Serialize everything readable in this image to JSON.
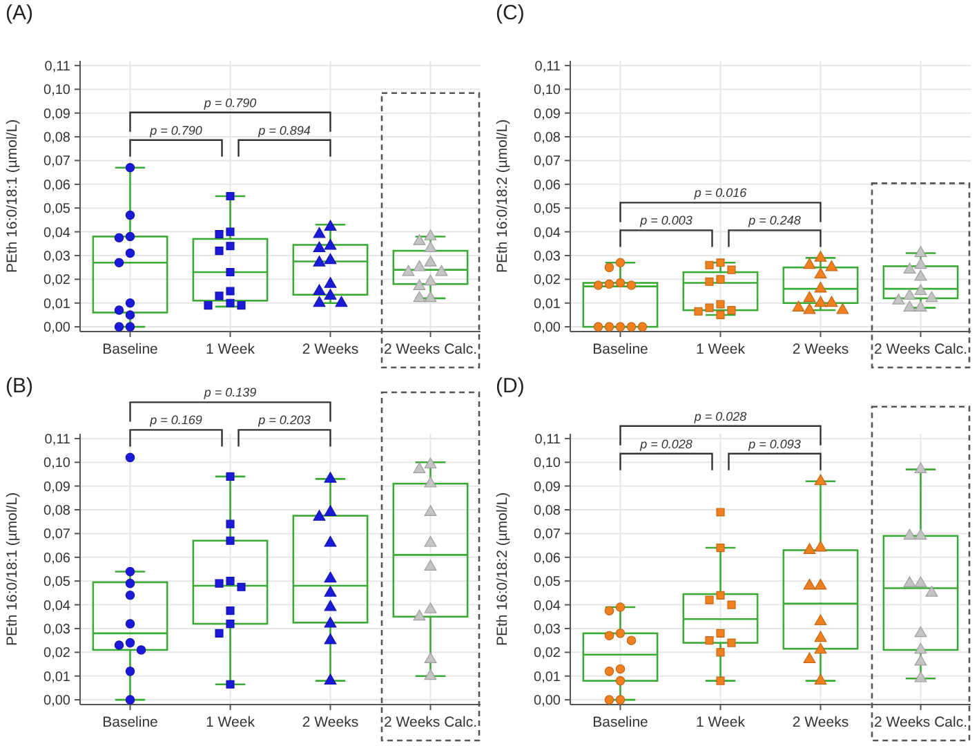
{
  "chart_data": [
    {
      "type": "box",
      "title": "(A)",
      "ylabel": "PEth 16:0/18:1 (µmol/L)",
      "categories": [
        "Baseline",
        "1 Week",
        "2 Weeks",
        "2 Weeks Calc."
      ],
      "ylim": [
        -0.002,
        0.112
      ],
      "yticks": [
        {
          "value": 0,
          "label": "0,00"
        },
        {
          "value": 0.01,
          "label": "0,01"
        },
        {
          "value": 0.02,
          "label": "0,02"
        },
        {
          "value": 0.03,
          "label": "0,03"
        },
        {
          "value": 0.04,
          "label": "0,04"
        },
        {
          "value": 0.05,
          "label": "0,05"
        },
        {
          "value": 0.06,
          "label": "0,06"
        },
        {
          "value": 0.07,
          "label": "0,07"
        },
        {
          "value": 0.08,
          "label": "0,08"
        },
        {
          "value": 0.09,
          "label": "0,09"
        },
        {
          "value": 0.1,
          "label": "0,10"
        },
        {
          "value": 0.11,
          "label": "0,11"
        }
      ],
      "grid": true,
      "annotations": [
        "p = 0.790",
        "p = 0.894",
        "p = 0.790"
      ],
      "series": [
        {
          "color": "#3aaa35",
          "boxes": [
            {
              "low": 0,
              "q1": 0.006,
              "median": 0.027,
              "q3": 0.038,
              "high": 0.067
            },
            {
              "low": 0.0085,
              "q1": 0.011,
              "median": 0.023,
              "q3": 0.037,
              "high": 0.055
            },
            {
              "low": 0.01,
              "q1": 0.0135,
              "median": 0.0275,
              "q3": 0.0345,
              "high": 0.043
            },
            {
              "low": 0.012,
              "q1": 0.018,
              "median": 0.024,
              "q3": 0.032,
              "high": 0.038
            }
          ]
        },
        {
          "type": "scatter",
          "marker": "circle",
          "color": "#1a1ad8",
          "x": [
            "Baseline",
            "Baseline",
            "Baseline",
            "Baseline",
            "Baseline",
            "Baseline",
            "Baseline",
            "Baseline",
            "Baseline",
            "Baseline",
            "Baseline"
          ],
          "values": [
            0.067,
            0.047,
            0.038,
            0.0375,
            0.031,
            0.027,
            0.01,
            0.007,
            0.005,
            0,
            0
          ]
        },
        {
          "type": "scatter",
          "marker": "square",
          "color": "#1a1ad8",
          "x": [
            "1 Week",
            "1 Week",
            "1 Week",
            "1 Week",
            "1 Week",
            "1 Week",
            "1 Week",
            "1 Week",
            "1 Week",
            "1 Week",
            "1 Week"
          ],
          "values": [
            0.055,
            0.04,
            0.039,
            0.034,
            0.032,
            0.023,
            0.015,
            0.013,
            0.01,
            0.009,
            0.009
          ]
        },
        {
          "type": "scatter",
          "marker": "triangle",
          "color": "#1a1ad8",
          "x": [
            "2 Weeks",
            "2 Weeks",
            "2 Weeks",
            "2 Weeks",
            "2 Weeks",
            "2 Weeks",
            "2 Weeks",
            "2 Weeks",
            "2 Weeks",
            "2 Weeks",
            "2 Weeks"
          ],
          "values": [
            0.042,
            0.039,
            0.034,
            0.033,
            0.028,
            0.027,
            0.018,
            0.015,
            0.013,
            0.01,
            0.01
          ]
        },
        {
          "type": "scatter",
          "marker": "triangle",
          "color": "#c4c4c4",
          "x": [
            "2 Weeks Calc.",
            "2 Weeks Calc.",
            "2 Weeks Calc.",
            "2 Weeks Calc.",
            "2 Weeks Calc.",
            "2 Weeks Calc.",
            "2 Weeks Calc.",
            "2 Weeks Calc.",
            "2 Weeks Calc.",
            "2 Weeks Calc.",
            "2 Weeks Calc."
          ],
          "values": [
            0.038,
            0.036,
            0.033,
            0.027,
            0.025,
            0.023,
            0.023,
            0.019,
            0.017,
            0.012,
            0.012
          ]
        }
      ]
    },
    {
      "type": "box",
      "title": "(C)",
      "ylabel": "PEth 16:0/18:2 (µmol/L)",
      "categories": [
        "Baseline",
        "1 Week",
        "2 Weeks",
        "2 Weeks Calc."
      ],
      "ylim": [
        -0.002,
        0.112
      ],
      "yticks": [
        {
          "value": 0,
          "label": "0,00"
        },
        {
          "value": 0.01,
          "label": "0,01"
        },
        {
          "value": 0.02,
          "label": "0,02"
        },
        {
          "value": 0.03,
          "label": "0,03"
        },
        {
          "value": 0.04,
          "label": "0,04"
        },
        {
          "value": 0.05,
          "label": "0,05"
        },
        {
          "value": 0.06,
          "label": "0,06"
        },
        {
          "value": 0.07,
          "label": "0,07"
        },
        {
          "value": 0.08,
          "label": "0,08"
        },
        {
          "value": 0.09,
          "label": "0,09"
        },
        {
          "value": 0.1,
          "label": "0,10"
        },
        {
          "value": 0.11,
          "label": "0,11"
        }
      ],
      "grid": true,
      "annotations": [
        "p = 0.003",
        "p = 0.248",
        "p = 0.016"
      ],
      "series": [
        {
          "color": "#3aaa35",
          "boxes": [
            {
              "low": 0,
              "q1": 0,
              "median": 0.017,
              "q3": 0.0185,
              "high": 0.027
            },
            {
              "low": 0.005,
              "q1": 0.007,
              "median": 0.0185,
              "q3": 0.023,
              "high": 0.027
            },
            {
              "low": 0.007,
              "q1": 0.01,
              "median": 0.016,
              "q3": 0.025,
              "high": 0.029
            },
            {
              "low": 0.008,
              "q1": 0.012,
              "median": 0.016,
              "q3": 0.0255,
              "high": 0.031
            }
          ]
        },
        {
          "type": "scatter",
          "marker": "circle",
          "color": "#f07f1e",
          "x": [
            "Baseline",
            "Baseline",
            "Baseline",
            "Baseline",
            "Baseline",
            "Baseline",
            "Baseline",
            "Baseline",
            "Baseline",
            "Baseline",
            "Baseline"
          ],
          "values": [
            0.027,
            0.025,
            0.0185,
            0.018,
            0.0175,
            0.0175,
            0,
            0,
            0,
            0,
            0
          ]
        },
        {
          "type": "scatter",
          "marker": "square",
          "color": "#f07f1e",
          "x": [
            "1 Week",
            "1 Week",
            "1 Week",
            "1 Week",
            "1 Week",
            "1 Week",
            "1 Week",
            "1 Week",
            "1 Week",
            "1 Week"
          ],
          "values": [
            0.027,
            0.026,
            0.024,
            0.02,
            0.019,
            0.0095,
            0.008,
            0.007,
            0.0065,
            0.005
          ]
        },
        {
          "type": "scatter",
          "marker": "triangle",
          "color": "#f07f1e",
          "x": [
            "2 Weeks",
            "2 Weeks",
            "2 Weeks",
            "2 Weeks",
            "2 Weeks",
            "2 Weeks",
            "2 Weeks",
            "2 Weeks",
            "2 Weeks",
            "2 Weeks",
            "2 Weeks"
          ],
          "values": [
            0.029,
            0.026,
            0.025,
            0.022,
            0.016,
            0.012,
            0.01,
            0.01,
            0.008,
            0.007,
            0.007
          ]
        },
        {
          "type": "scatter",
          "marker": "triangle",
          "color": "#c4c4c4",
          "x": [
            "2 Weeks Calc.",
            "2 Weeks Calc.",
            "2 Weeks Calc.",
            "2 Weeks Calc.",
            "2 Weeks Calc.",
            "2 Weeks Calc.",
            "2 Weeks Calc.",
            "2 Weeks Calc.",
            "2 Weeks Calc.",
            "2 Weeks Calc."
          ],
          "values": [
            0.031,
            0.026,
            0.024,
            0.021,
            0.015,
            0.013,
            0.012,
            0.011,
            0.008,
            0.008
          ]
        }
      ]
    },
    {
      "type": "box",
      "title": "(B)",
      "ylabel": "PEth 16:0/18:1 (µmol/L)",
      "categories": [
        "Baseline",
        "1 Week",
        "2 Weeks",
        "2 Weeks Calc."
      ],
      "ylim": [
        -0.002,
        0.112
      ],
      "yticks": [
        {
          "value": 0,
          "label": "0,00"
        },
        {
          "value": 0.01,
          "label": "0,01"
        },
        {
          "value": 0.02,
          "label": "0,02"
        },
        {
          "value": 0.03,
          "label": "0,03"
        },
        {
          "value": 0.04,
          "label": "0,04"
        },
        {
          "value": 0.05,
          "label": "0,05"
        },
        {
          "value": 0.06,
          "label": "0,06"
        },
        {
          "value": 0.07,
          "label": "0,07"
        },
        {
          "value": 0.08,
          "label": "0,08"
        },
        {
          "value": 0.09,
          "label": "0,09"
        },
        {
          "value": 0.1,
          "label": "0,10"
        },
        {
          "value": 0.11,
          "label": "0,11"
        }
      ],
      "grid": true,
      "annotations": [
        "p = 0.169",
        "p = 0.203",
        "p = 0.139"
      ],
      "series": [
        {
          "color": "#3aaa35",
          "boxes": [
            {
              "low": 0,
              "q1": 0.021,
              "median": 0.028,
              "q3": 0.0495,
              "high": 0.054
            },
            {
              "low": 0.0065,
              "q1": 0.032,
              "median": 0.048,
              "q3": 0.067,
              "high": 0.094
            },
            {
              "low": 0.008,
              "q1": 0.0325,
              "median": 0.048,
              "q3": 0.0775,
              "high": 0.093
            },
            {
              "low": 0.01,
              "q1": 0.035,
              "median": 0.061,
              "q3": 0.091,
              "high": 0.1
            }
          ]
        },
        {
          "type": "scatter",
          "marker": "circle",
          "color": "#1a1ad8",
          "x": [
            "Baseline",
            "Baseline",
            "Baseline",
            "Baseline",
            "Baseline",
            "Baseline",
            "Baseline",
            "Baseline",
            "Baseline",
            "Baseline"
          ],
          "values": [
            0.102,
            0.054,
            0.049,
            0.044,
            0.032,
            0.024,
            0.023,
            0.021,
            0.012,
            0
          ]
        },
        {
          "type": "scatter",
          "marker": "square",
          "color": "#1a1ad8",
          "x": [
            "1 Week",
            "1 Week",
            "1 Week",
            "1 Week",
            "1 Week",
            "1 Week",
            "1 Week",
            "1 Week",
            "1 Week",
            "1 Week"
          ],
          "values": [
            0.094,
            0.074,
            0.067,
            0.05,
            0.049,
            0.0475,
            0.0375,
            0.032,
            0.028,
            0.0065
          ]
        },
        {
          "type": "scatter",
          "marker": "triangle",
          "color": "#1a1ad8",
          "x": [
            "2 Weeks",
            "2 Weeks",
            "2 Weeks",
            "2 Weeks",
            "2 Weeks",
            "2 Weeks",
            "2 Weeks",
            "2 Weeks",
            "2 Weeks",
            "2 Weeks"
          ],
          "values": [
            0.093,
            0.079,
            0.077,
            0.066,
            0.051,
            0.045,
            0.039,
            0.032,
            0.025,
            0.008
          ]
        },
        {
          "type": "scatter",
          "marker": "triangle",
          "color": "#c4c4c4",
          "x": [
            "2 Weeks Calc.",
            "2 Weeks Calc.",
            "2 Weeks Calc.",
            "2 Weeks Calc.",
            "2 Weeks Calc.",
            "2 Weeks Calc.",
            "2 Weeks Calc.",
            "2 Weeks Calc.",
            "2 Weeks Calc.",
            "2 Weeks Calc."
          ],
          "values": [
            0.099,
            0.097,
            0.091,
            0.079,
            0.066,
            0.056,
            0.038,
            0.035,
            0.017,
            0.01
          ]
        }
      ]
    },
    {
      "type": "box",
      "title": "(D)",
      "ylabel": "PEth 16:0/18:2 (µmol/L)",
      "categories": [
        "Baseline",
        "1 Week",
        "2 Weeks",
        "2 Weeks Calc."
      ],
      "ylim": [
        -0.002,
        0.112
      ],
      "yticks": [
        {
          "value": 0,
          "label": "0,00"
        },
        {
          "value": 0.01,
          "label": "0,01"
        },
        {
          "value": 0.02,
          "label": "0,02"
        },
        {
          "value": 0.03,
          "label": "0,03"
        },
        {
          "value": 0.04,
          "label": "0,04"
        },
        {
          "value": 0.05,
          "label": "0,05"
        },
        {
          "value": 0.06,
          "label": "0,06"
        },
        {
          "value": 0.07,
          "label": "0,07"
        },
        {
          "value": 0.08,
          "label": "0,08"
        },
        {
          "value": 0.09,
          "label": "0,09"
        },
        {
          "value": 0.1,
          "label": "0,10"
        },
        {
          "value": 0.11,
          "label": "0,11"
        }
      ],
      "grid": true,
      "annotations": [
        "p = 0.028",
        "p = 0.093",
        "p = 0.028"
      ],
      "series": [
        {
          "color": "#3aaa35",
          "boxes": [
            {
              "low": 0,
              "q1": 0.008,
              "median": 0.019,
              "q3": 0.028,
              "high": 0.039
            },
            {
              "low": 0.008,
              "q1": 0.024,
              "median": 0.034,
              "q3": 0.0445,
              "high": 0.064
            },
            {
              "low": 0.008,
              "q1": 0.0215,
              "median": 0.0405,
              "q3": 0.063,
              "high": 0.092
            },
            {
              "low": 0.009,
              "q1": 0.021,
              "median": 0.047,
              "q3": 0.069,
              "high": 0.097
            }
          ]
        },
        {
          "type": "scatter",
          "marker": "circle",
          "color": "#f07f1e",
          "x": [
            "Baseline",
            "Baseline",
            "Baseline",
            "Baseline",
            "Baseline",
            "Baseline",
            "Baseline",
            "Baseline",
            "Baseline",
            "Baseline"
          ],
          "values": [
            0.039,
            0.0375,
            0.028,
            0.027,
            0.025,
            0.013,
            0.012,
            0.008,
            0,
            0
          ]
        },
        {
          "type": "scatter",
          "marker": "square",
          "color": "#f07f1e",
          "x": [
            "1 Week",
            "1 Week",
            "1 Week",
            "1 Week",
            "1 Week",
            "1 Week",
            "1 Week",
            "1 Week",
            "1 Week",
            "1 Week"
          ],
          "values": [
            0.079,
            0.064,
            0.044,
            0.042,
            0.04,
            0.028,
            0.025,
            0.024,
            0.02,
            0.008
          ]
        },
        {
          "type": "scatter",
          "marker": "triangle",
          "color": "#f07f1e",
          "x": [
            "2 Weeks",
            "2 Weeks",
            "2 Weeks",
            "2 Weeks",
            "2 Weeks",
            "2 Weeks",
            "2 Weeks",
            "2 Weeks",
            "2 Weeks",
            "2 Weeks"
          ],
          "values": [
            0.092,
            0.064,
            0.063,
            0.048,
            0.048,
            0.033,
            0.026,
            0.021,
            0.017,
            0.008
          ]
        },
        {
          "type": "scatter",
          "marker": "triangle",
          "color": "#c4c4c4",
          "x": [
            "2 Weeks Calc.",
            "2 Weeks Calc.",
            "2 Weeks Calc.",
            "2 Weeks Calc.",
            "2 Weeks Calc.",
            "2 Weeks Calc.",
            "2 Weeks Calc.",
            "2 Weeks Calc.",
            "2 Weeks Calc.",
            "2 Weeks Calc."
          ],
          "values": [
            0.097,
            0.069,
            0.069,
            0.049,
            0.049,
            0.045,
            0.028,
            0.021,
            0.016,
            0.009
          ]
        }
      ]
    }
  ]
}
